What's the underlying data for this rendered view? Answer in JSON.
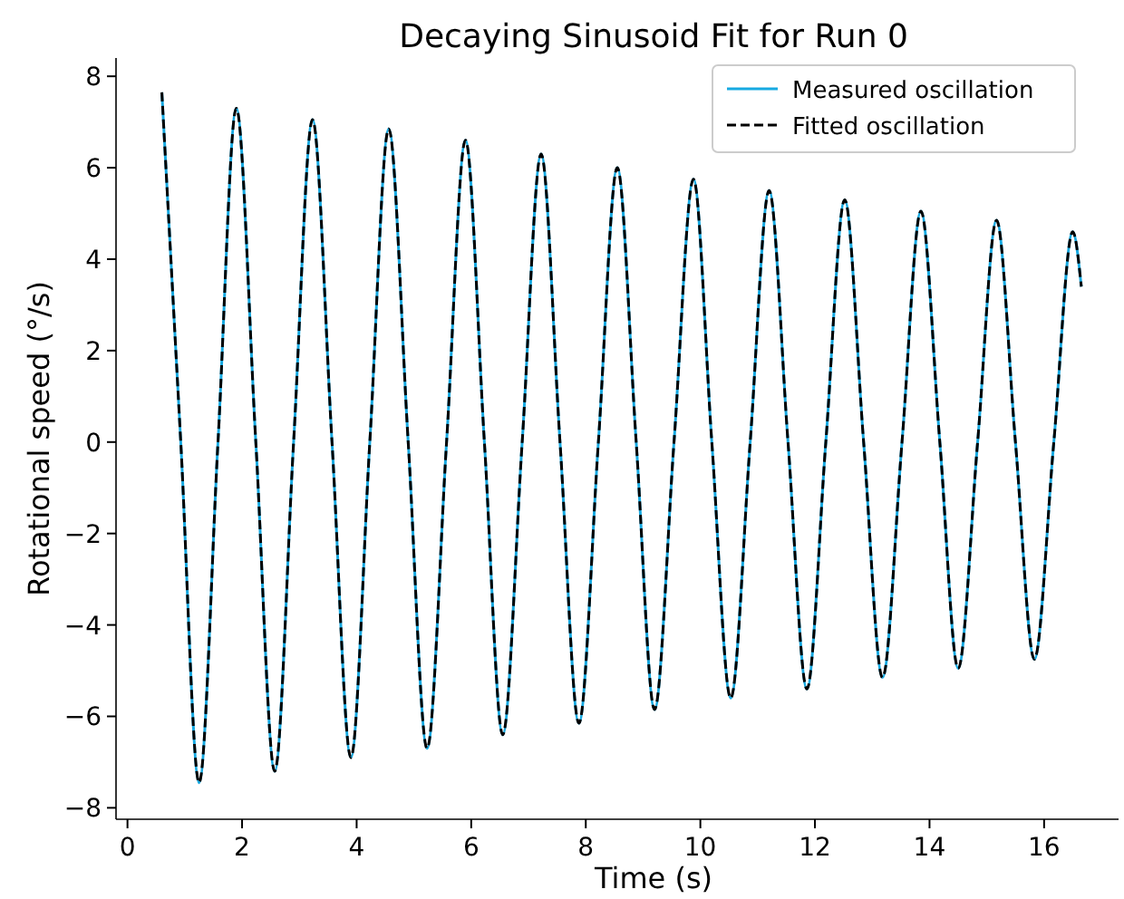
{
  "chart_data": {
    "type": "line",
    "title": "Decaying Sinusoid Fit for Run 0",
    "xlabel": "Time (s)",
    "ylabel": "Rotational speed (°/s)",
    "x": [
      0.6,
      0.93,
      1.25,
      1.58,
      1.9,
      2.24,
      2.57,
      2.9,
      3.23,
      3.57,
      3.9,
      4.23,
      4.56,
      4.9,
      5.23,
      5.57,
      5.9,
      6.23,
      6.55,
      6.89,
      7.22,
      7.55,
      7.88,
      8.22,
      8.55,
      8.88,
      9.2,
      9.54,
      9.88,
      10.2,
      10.53,
      10.87,
      11.2,
      11.53,
      11.86,
      12.19,
      12.52,
      12.85,
      13.18,
      13.52,
      13.85,
      14.18,
      14.5,
      14.84,
      15.17,
      15.5,
      15.83,
      16.17,
      16.5,
      16.65
    ],
    "series": [
      {
        "name": "Measured oscillation",
        "color": "#17a9e1",
        "line_style": "solid",
        "values": [
          7.65,
          0,
          -7.45,
          0,
          7.3,
          0,
          -7.2,
          0,
          7.05,
          0,
          -6.9,
          0,
          6.85,
          0,
          -6.7,
          0,
          6.6,
          0,
          -6.4,
          0,
          6.3,
          0,
          -6.15,
          0,
          6.0,
          0,
          -5.85,
          0,
          5.75,
          0,
          -5.6,
          0,
          5.5,
          0,
          -5.4,
          0,
          5.3,
          0,
          -5.15,
          0,
          5.05,
          0,
          -4.95,
          0,
          4.85,
          0,
          -4.75,
          0,
          4.6,
          3.4
        ]
      },
      {
        "name": "Fitted oscillation",
        "color": "#000000",
        "line_style": "dashed",
        "values": [
          7.65,
          0,
          -7.45,
          0,
          7.3,
          0,
          -7.2,
          0,
          7.05,
          0,
          -6.9,
          0,
          6.85,
          0,
          -6.7,
          0,
          6.6,
          0,
          -6.4,
          0,
          6.3,
          0,
          -6.15,
          0,
          6.0,
          0,
          -5.85,
          0,
          5.75,
          0,
          -5.6,
          0,
          5.5,
          0,
          -5.4,
          0,
          5.3,
          0,
          -5.15,
          0,
          5.05,
          0,
          -4.95,
          0,
          4.85,
          0,
          -4.75,
          0,
          4.6,
          3.4
        ]
      }
    ],
    "xlim": [
      -0.2,
      17.3
    ],
    "xticks": [
      0,
      2,
      4,
      6,
      8,
      10,
      12,
      14,
      16
    ],
    "ylim": [
      -8.25,
      8.4
    ],
    "yticks": [
      -8,
      -6,
      -4,
      -2,
      0,
      2,
      4,
      6,
      8
    ],
    "grid": false,
    "legend": "top right"
  }
}
